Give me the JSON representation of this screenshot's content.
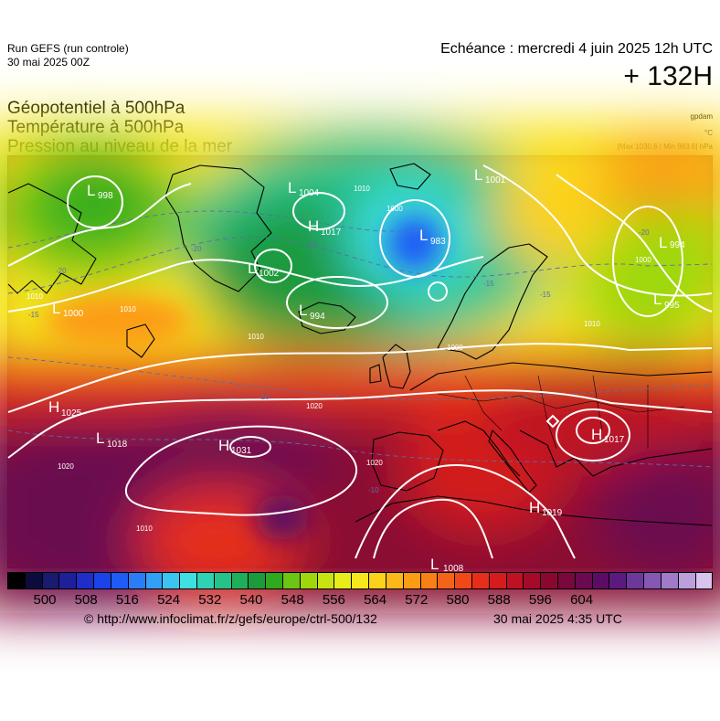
{
  "header": {
    "run_name": "Run GEFS (run controle)",
    "run_date": "30 mai 2025 00Z",
    "valid_time": "Echéance : mercredi 4 juin 2025 12h UTC",
    "lead_time": "+ 132H",
    "params": [
      "Géopotentiel à 500hPa",
      "Température à 500hPa",
      "Pression au niveau de la mer"
    ],
    "units": [
      "gpdam",
      "°C"
    ],
    "maxmin": "[Max 1030.6 | Min 983.6] hPa"
  },
  "colors": {
    "scale": [
      "#000000",
      "#0c0c3c",
      "#1a1a6e",
      "#1f1f9a",
      "#1e2ec6",
      "#1a43e8",
      "#1e5cf5",
      "#2a7cf7",
      "#32a0f5",
      "#3cc4f0",
      "#3ee0e0",
      "#2fd3b4",
      "#25c28a",
      "#1fae5a",
      "#1c9a3c",
      "#2eaa1e",
      "#6cc414",
      "#9ed80c",
      "#c8e410",
      "#e8ec18",
      "#f8e61c",
      "#fcd21a",
      "#fcb818",
      "#fc9c16",
      "#f88016",
      "#f46418",
      "#f04818",
      "#e62e1a",
      "#d41c1c",
      "#be1224",
      "#a40a2a",
      "#8a0830",
      "#78083e",
      "#6a0a50",
      "#5c0c64",
      "#5c1a80",
      "#6c389c",
      "#8458b4",
      "#a07cc8",
      "#bca0dc",
      "#d8c4ec"
    ],
    "scale_labels": [
      "500",
      "508",
      "516",
      "524",
      "532",
      "540",
      "548",
      "556",
      "564",
      "572",
      "580",
      "588",
      "596",
      "604"
    ]
  },
  "map": {
    "pressure_centres": [
      {
        "type": "L",
        "value": "998"
      },
      {
        "type": "L",
        "value": "1004"
      },
      {
        "type": "H",
        "value": "1017"
      },
      {
        "type": "L",
        "value": "983"
      },
      {
        "type": "L",
        "value": "1001"
      },
      {
        "type": "L",
        "value": "1002"
      },
      {
        "type": "L",
        "value": "994"
      },
      {
        "type": "L",
        "value": "994"
      },
      {
        "type": "L",
        "value": "995"
      },
      {
        "type": "L",
        "value": "1000"
      },
      {
        "type": "H",
        "value": "1025"
      },
      {
        "type": "L",
        "value": "1018"
      },
      {
        "type": "H",
        "value": "1031"
      },
      {
        "type": "H",
        "value": "1017"
      },
      {
        "type": "H",
        "value": "1019"
      },
      {
        "type": "L",
        "value": "1008"
      }
    ],
    "isobar_labels": [
      "1010",
      "1000",
      "1010",
      "1010",
      "1000",
      "1010",
      "1020",
      "1020",
      "1020",
      "1010",
      "1010",
      "1000"
    ],
    "temp_labels": [
      "-20",
      "-20",
      "-20",
      "-15",
      "-10",
      "-10",
      "-15",
      "-20",
      "-15"
    ]
  },
  "footer": {
    "credit": "© http://www.infoclimat.fr/z/gefs/europe/ctrl-500/132",
    "issued": "30 mai 2025  4:35 UTC"
  }
}
